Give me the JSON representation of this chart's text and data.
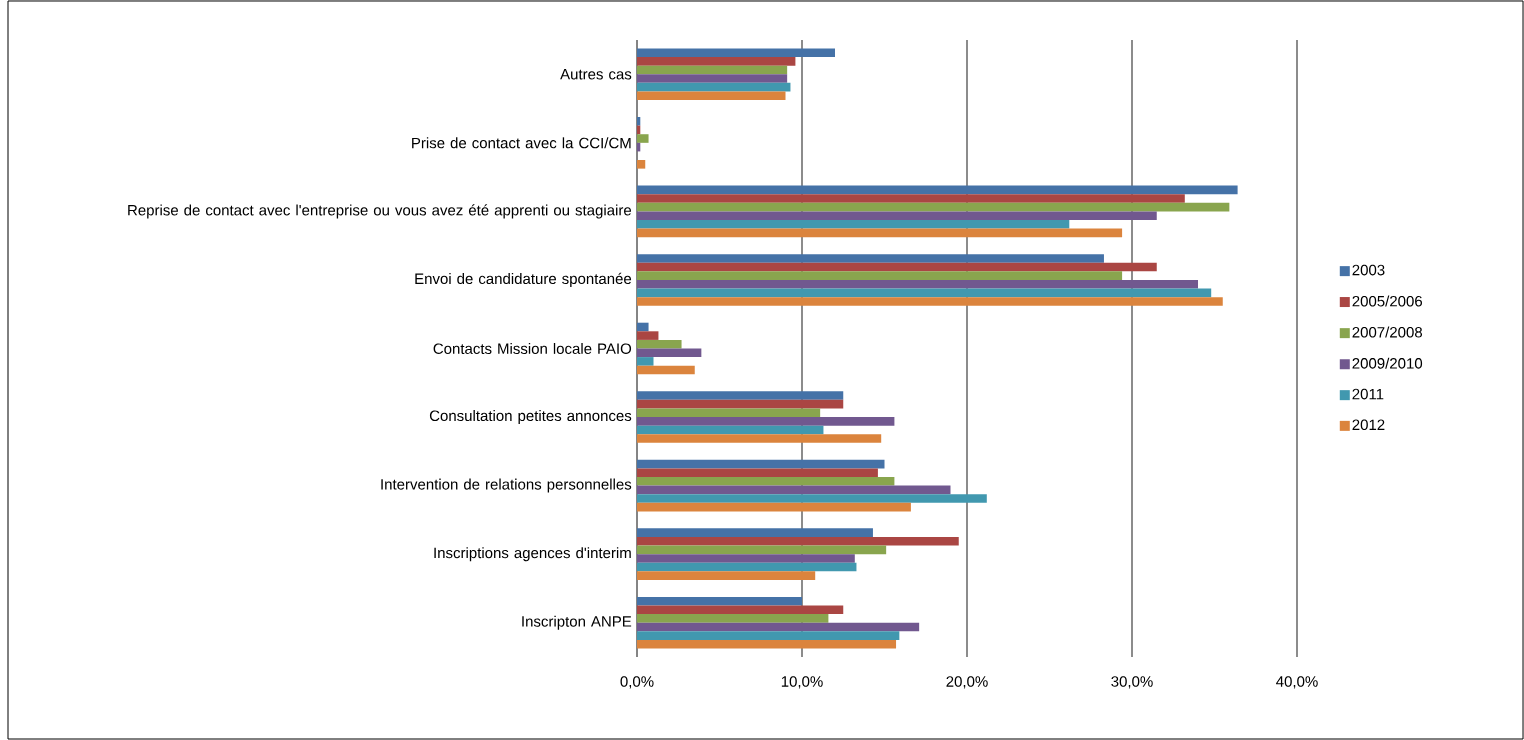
{
  "chart_data": {
    "type": "bar",
    "orientation": "horizontal",
    "categories": [
      "Autres cas",
      "Prise de contact avec la CCI/CM",
      "Reprise de contact avec l'entreprise ou vous avez été apprenti ou stagiaire",
      "Envoi de candidature spontanée",
      "Contacts Mission locale PAIO",
      "Consultation petites annonces",
      "Intervention de relations personnelles",
      "Inscriptions agences d'interim",
      "Inscripton ANPE"
    ],
    "series": [
      {
        "name": "2003",
        "color": "#4572a7",
        "values": [
          12.0,
          0.2,
          36.4,
          28.3,
          0.7,
          12.5,
          15.0,
          14.3,
          10.0
        ]
      },
      {
        "name": "2005/2006",
        "color": "#aa4643",
        "values": [
          9.6,
          0.2,
          33.2,
          31.5,
          1.3,
          12.5,
          14.6,
          19.5,
          12.5
        ]
      },
      {
        "name": "2007/2008",
        "color": "#89a54e",
        "values": [
          9.1,
          0.7,
          35.9,
          29.4,
          2.7,
          11.1,
          15.6,
          15.1,
          11.6
        ]
      },
      {
        "name": "2009/2010",
        "color": "#71588f",
        "values": [
          9.1,
          0.2,
          31.5,
          34.0,
          3.9,
          15.6,
          19.0,
          13.2,
          17.1
        ]
      },
      {
        "name": "2011",
        "color": "#4198af",
        "values": [
          9.3,
          0,
          26.2,
          34.8,
          1.0,
          11.3,
          21.2,
          13.3,
          15.9
        ]
      },
      {
        "name": "2012",
        "color": "#db843d",
        "values": [
          9.0,
          0.5,
          29.4,
          35.5,
          3.5,
          14.8,
          16.6,
          10.8,
          15.7
        ]
      }
    ],
    "xlim": [
      0,
      40
    ],
    "xticks": [
      {
        "value": 0,
        "label": "0,0%"
      },
      {
        "value": 10,
        "label": "10,0%"
      },
      {
        "value": 20,
        "label": "20,0%"
      },
      {
        "value": 30,
        "label": "30,0%"
      },
      {
        "value": 40,
        "label": "40,0%"
      }
    ],
    "grid": "x",
    "legend": "right"
  }
}
